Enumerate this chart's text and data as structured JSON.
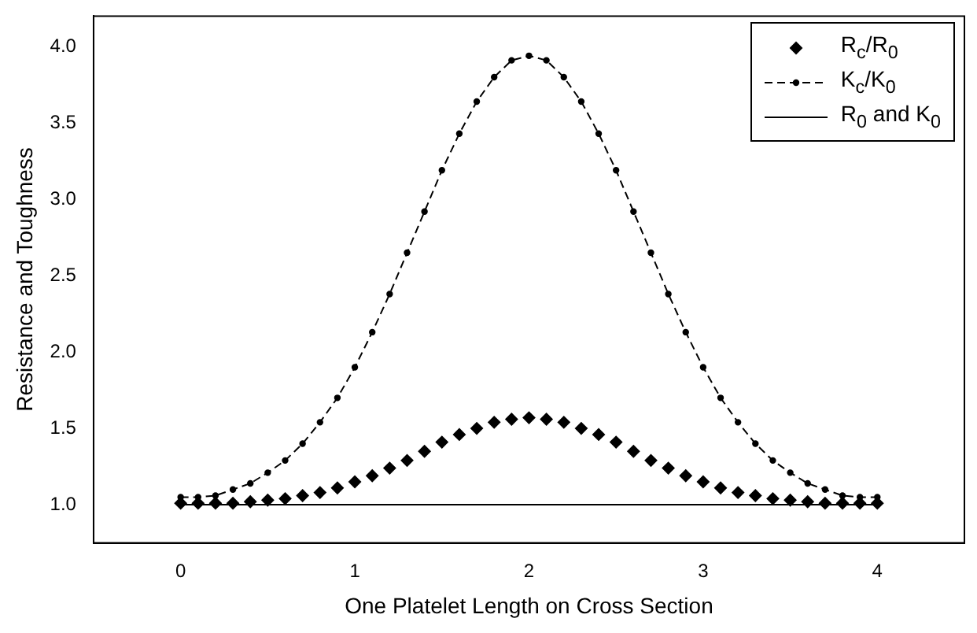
{
  "chart_data": {
    "type": "scatter",
    "xlabel": "One Platelet Length on Cross Section",
    "ylabel": "Resistance and Toughness",
    "xlim": [
      -0.5,
      4.5
    ],
    "xticks": [
      0,
      1,
      2,
      3,
      4
    ],
    "ylim": [
      0.75,
      4.2
    ],
    "yticks": [
      {
        "value": 1,
        "label": "1.0"
      },
      1.5,
      {
        "value": 2,
        "label": "2.0"
      },
      2.5,
      {
        "value": 3,
        "label": "3.0"
      },
      3.5,
      {
        "value": 4,
        "label": "4.0"
      }
    ],
    "grid": false,
    "legend": "top right",
    "series": [
      {
        "name": "R$_{c}$/R$_{0}$",
        "type": "scatter",
        "marker": "diamond",
        "color": "#000000",
        "x": [
          0,
          0.1,
          0.2,
          0.3,
          0.4,
          0.5,
          0.6,
          0.7,
          0.8,
          0.9,
          1,
          1.1,
          1.2,
          1.3,
          1.4,
          1.5,
          1.6,
          1.7,
          1.8,
          1.9,
          2,
          2.1,
          2.2,
          2.3,
          2.4,
          2.5,
          2.6,
          2.7,
          2.8,
          2.9,
          3,
          3.1,
          3.2,
          3.3,
          3.4,
          3.5,
          3.6,
          3.7,
          3.8,
          3.9,
          4
        ],
        "values": [
          1.01,
          1.01,
          1.01,
          1.01,
          1.02,
          1.03,
          1.04,
          1.06,
          1.08,
          1.11,
          1.15,
          1.19,
          1.24,
          1.29,
          1.35,
          1.41,
          1.46,
          1.5,
          1.54,
          1.56,
          1.57,
          1.56,
          1.54,
          1.5,
          1.46,
          1.41,
          1.35,
          1.29,
          1.24,
          1.19,
          1.15,
          1.11,
          1.08,
          1.06,
          1.04,
          1.03,
          1.02,
          1.01,
          1.01,
          1.01,
          1.01
        ]
      },
      {
        "name": "K$_{c}$/K$_{0}$",
        "type": "line",
        "marker": "circle",
        "line_style": "dashed",
        "color": "#000000",
        "x": [
          0,
          0.1,
          0.2,
          0.3,
          0.4,
          0.5,
          0.6,
          0.7,
          0.8,
          0.9,
          1,
          1.1,
          1.2,
          1.3,
          1.4,
          1.5,
          1.6,
          1.7,
          1.8,
          1.9,
          2,
          2.1,
          2.2,
          2.3,
          2.4,
          2.5,
          2.6,
          2.7,
          2.8,
          2.9,
          3,
          3.1,
          3.2,
          3.3,
          3.4,
          3.5,
          3.6,
          3.7,
          3.8,
          3.9,
          4
        ],
        "values": [
          1.05,
          1.05,
          1.06,
          1.1,
          1.14,
          1.21,
          1.29,
          1.4,
          1.54,
          1.7,
          1.9,
          2.13,
          2.38,
          2.65,
          2.92,
          3.19,
          3.43,
          3.64,
          3.8,
          3.91,
          3.94,
          3.91,
          3.8,
          3.64,
          3.43,
          3.19,
          2.92,
          2.65,
          2.38,
          2.13,
          1.9,
          1.7,
          1.54,
          1.4,
          1.29,
          1.21,
          1.14,
          1.1,
          1.06,
          1.05,
          1.05
        ]
      },
      {
        "name": "R$_{0}$ and K$_{0}$",
        "type": "line",
        "marker": "none",
        "line_style": "solid",
        "color": "#000000",
        "x": [
          0,
          4
        ],
        "values": [
          1.0,
          1.0
        ]
      }
    ]
  }
}
